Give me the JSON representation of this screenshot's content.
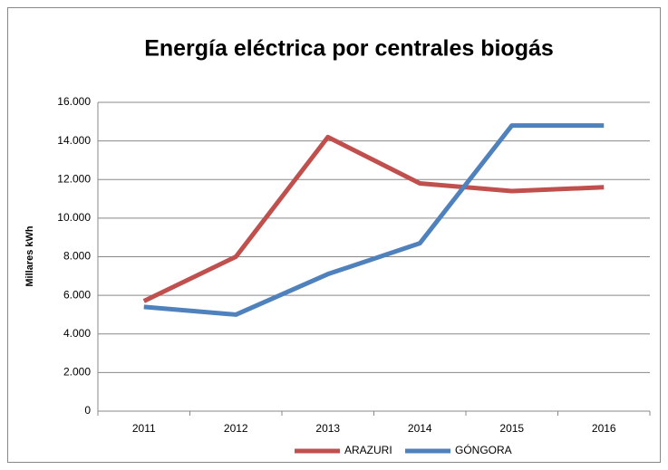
{
  "chart_data": {
    "type": "line",
    "title": "Energía eléctrica por centrales biogás",
    "y_label": "Millares kWh",
    "categories": [
      "2011",
      "2012",
      "2013",
      "2014",
      "2015",
      "2016"
    ],
    "series": [
      {
        "name": "ARAZURI",
        "color": "#c0504d",
        "values": [
          5700,
          8000,
          14200,
          11800,
          11400,
          11600
        ]
      },
      {
        "name": "GÓNGORA",
        "color": "#4f81bd",
        "values": [
          5400,
          5000,
          7100,
          8700,
          14800,
          14800
        ]
      }
    ],
    "ylim": [
      0,
      16000
    ],
    "yticks": [
      {
        "value": 0,
        "label": "0"
      },
      {
        "value": 2000,
        "label": "2.000"
      },
      {
        "value": 4000,
        "label": "4.000"
      },
      {
        "value": 6000,
        "label": "6.000"
      },
      {
        "value": 8000,
        "label": "8.000"
      },
      {
        "value": 10000,
        "label": "10.000"
      },
      {
        "value": 12000,
        "label": "12.000"
      },
      {
        "value": 14000,
        "label": "14.000"
      },
      {
        "value": 16000,
        "label": "16.000"
      }
    ],
    "grid": true,
    "legend": "bottom"
  }
}
